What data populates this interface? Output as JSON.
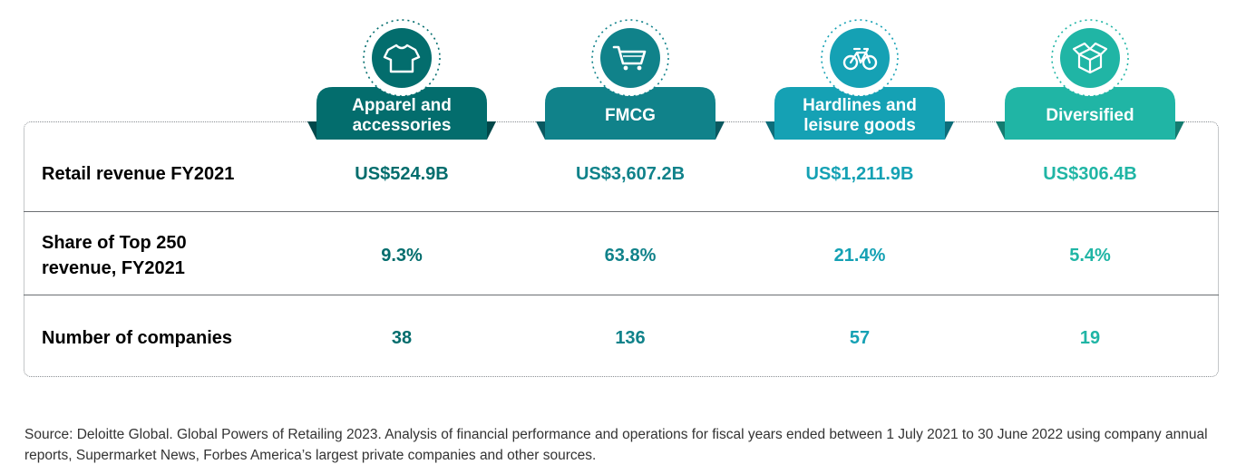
{
  "chart_data": {
    "type": "table",
    "categories": [
      {
        "label": "Apparel and\naccessories",
        "icon": "tshirt-icon",
        "color": "#036d6d",
        "shadow": "#02484a"
      },
      {
        "label": "FMCG",
        "icon": "shopping-cart-icon",
        "color": "#10828a",
        "shadow": "#0a5960"
      },
      {
        "label": "Hardlines and\nleisure goods",
        "icon": "bicycle-icon",
        "color": "#15a1b4",
        "shadow": "#0d6d7a"
      },
      {
        "label": "Diversified",
        "icon": "box-icon",
        "color": "#20b5a5",
        "shadow": "#147c70"
      }
    ],
    "rows": [
      {
        "label": "Retail revenue FY2021",
        "values": [
          "US$524.9B",
          "US$3,607.2B",
          "US$1,211.9B",
          "US$306.4B"
        ]
      },
      {
        "label": "Share of Top 250\nrevenue, FY2021",
        "values": [
          "9.3%",
          "63.8%",
          "21.4%",
          "5.4%"
        ]
      },
      {
        "label": "Number of companies",
        "values": [
          "38",
          "136",
          "57",
          "19"
        ]
      }
    ]
  },
  "source": "Source: Deloitte Global. Global Powers of Retailing 2023. Analysis of financial performance and operations for fiscal years ended between 1 July 2021 to 30 June 2022 using company annual reports, Supermarket News, Forbes America’s largest private companies and other sources."
}
